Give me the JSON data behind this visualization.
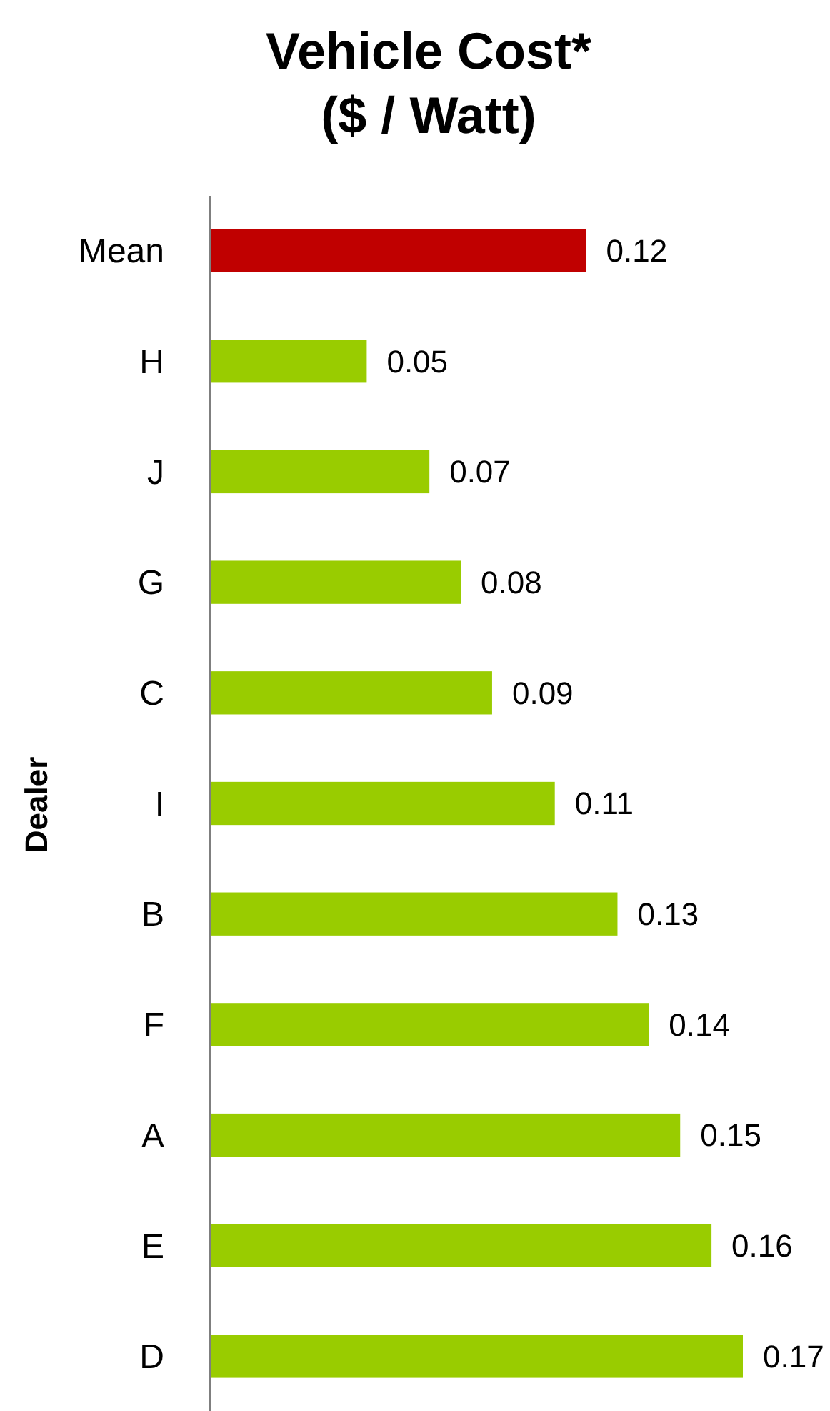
{
  "chart_data": {
    "type": "bar",
    "orientation": "horizontal",
    "title": "Vehicle Cost*\n($ / Watt)",
    "ylabel": "Dealer",
    "categories": [
      "Mean",
      "H",
      "J",
      "G",
      "C",
      "I",
      "B",
      "F",
      "A",
      "E",
      "D"
    ],
    "values": [
      0.12,
      0.05,
      0.07,
      0.08,
      0.09,
      0.11,
      0.13,
      0.14,
      0.15,
      0.16,
      0.17
    ],
    "colors": [
      "#c00000",
      "#99cc00",
      "#99cc00",
      "#99cc00",
      "#99cc00",
      "#99cc00",
      "#99cc00",
      "#99cc00",
      "#99cc00",
      "#99cc00",
      "#99cc00"
    ],
    "data_labels": true
  }
}
